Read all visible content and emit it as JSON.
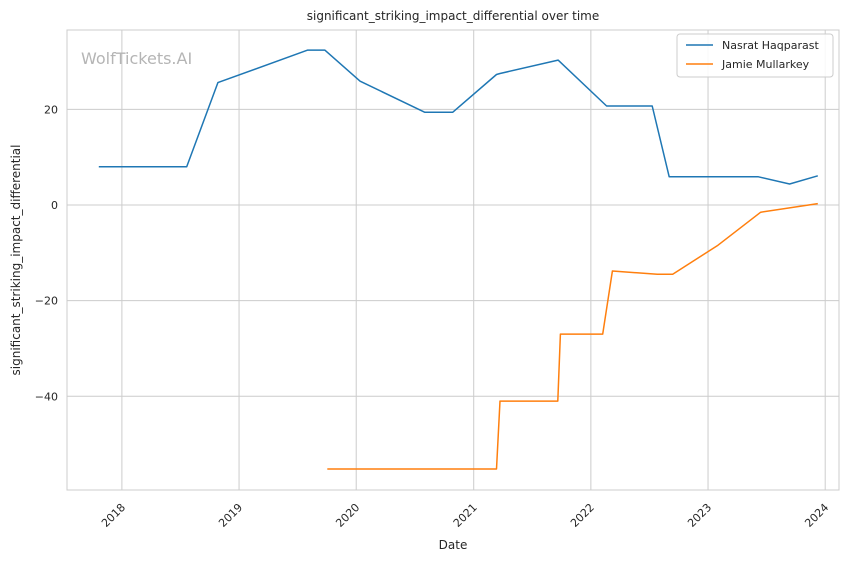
{
  "chart_data": {
    "type": "line",
    "title": "significant_striking_impact_differential over time",
    "xlabel": "Date",
    "ylabel": "significant_striking_impact_differential",
    "watermark": "WolfTickets.AI",
    "x_ticks": [
      "2018",
      "2019",
      "2020",
      "2021",
      "2022",
      "2023",
      "2024"
    ],
    "y_ticks": [
      20,
      0,
      -20,
      -40
    ],
    "xlim": [
      "2017-07-14",
      "2024-02-13"
    ],
    "ylim": [
      -59.6,
      36.6
    ],
    "grid": true,
    "legend_position": "top-right",
    "series": [
      {
        "name": "Nasrat Haqparast",
        "color": "#1f77b4",
        "points": [
          [
            "2017-10-21",
            8.0
          ],
          [
            "2018-07-22",
            8.0
          ],
          [
            "2018-10-27",
            25.6
          ],
          [
            "2019-08-03",
            32.4
          ],
          [
            "2019-09-25",
            32.4
          ],
          [
            "2020-01-13",
            25.9
          ],
          [
            "2020-08-01",
            19.4
          ],
          [
            "2020-10-28",
            19.4
          ],
          [
            "2021-03-13",
            27.3
          ],
          [
            "2021-03-24",
            27.5
          ],
          [
            "2021-09-21",
            30.3
          ],
          [
            "2022-02-19",
            20.7
          ],
          [
            "2022-07-11",
            20.7
          ],
          [
            "2022-09-02",
            5.9
          ],
          [
            "2023-06-07",
            5.9
          ],
          [
            "2023-09-12",
            4.4
          ],
          [
            "2023-12-09",
            6.1
          ]
        ]
      },
      {
        "name": "Jamie Mullarkey",
        "color": "#ff7f0e",
        "points": [
          [
            "2019-10-03",
            -55.2
          ],
          [
            "2021-03-13",
            -55.2
          ],
          [
            "2021-03-24",
            -41.0
          ],
          [
            "2021-09-20",
            -41.0
          ],
          [
            "2021-09-28",
            -27.0
          ],
          [
            "2022-02-07",
            -27.0
          ],
          [
            "2022-03-09",
            -13.8
          ],
          [
            "2022-07-27",
            -14.5
          ],
          [
            "2022-09-13",
            -14.5
          ],
          [
            "2023-02-01",
            -8.4
          ],
          [
            "2023-06-14",
            -1.5
          ],
          [
            "2023-12-09",
            0.3
          ]
        ]
      }
    ]
  }
}
